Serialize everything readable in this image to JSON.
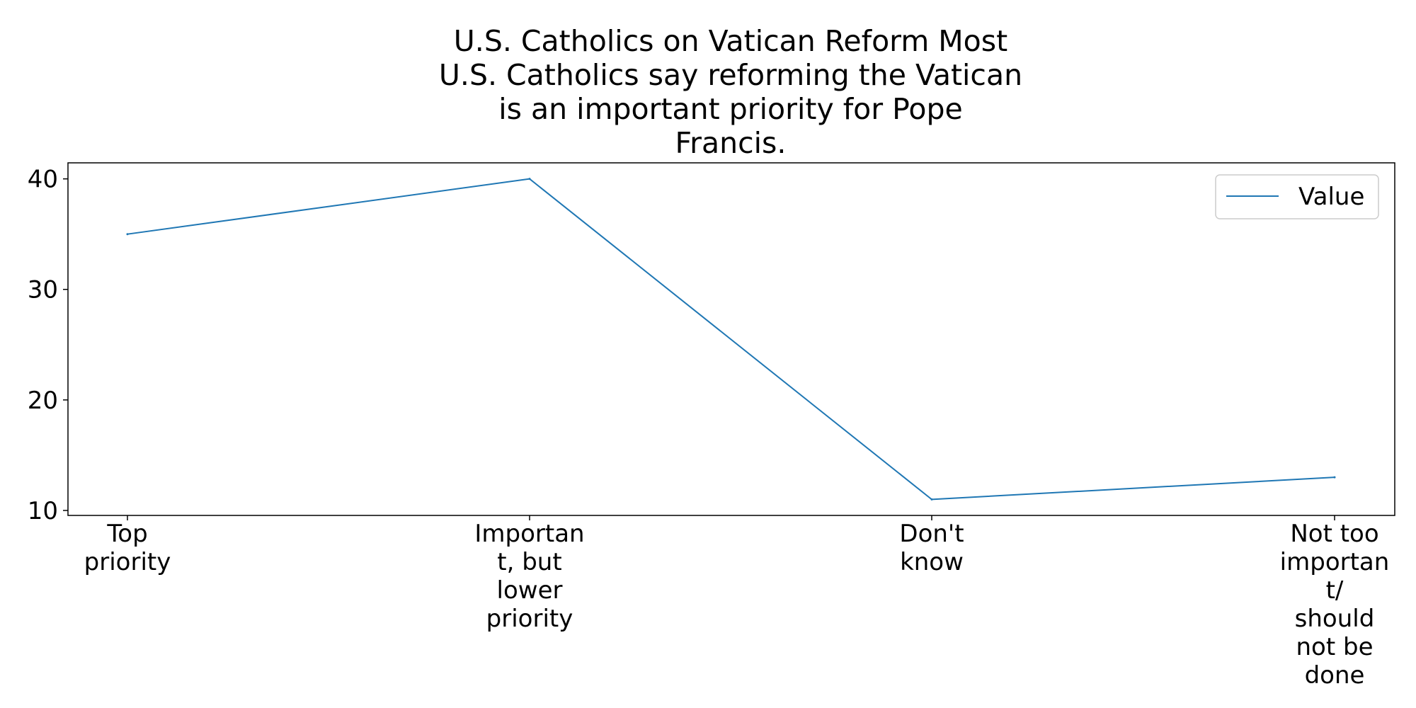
{
  "chart_data": {
    "type": "line",
    "title_lines": [
      "U.S. Catholics on Vatican Reform Most",
      "U.S. Catholics say reforming the Vatican",
      "is an important priority for Pope",
      "Francis."
    ],
    "categories": [
      "Top priority",
      "Important, but lower priority",
      "Don't know",
      "Not too important/ should not be done"
    ],
    "category_label_lines": [
      [
        "Top",
        "priority"
      ],
      [
        "Importan",
        "t, but",
        "lower",
        "priority"
      ],
      [
        "Don't",
        "know"
      ],
      [
        "Not too",
        "importan",
        "t/",
        "should",
        "not be",
        "done"
      ]
    ],
    "series": [
      {
        "name": "Value",
        "values": [
          35,
          40,
          11,
          13
        ],
        "color": "#1f77b4"
      }
    ],
    "ylim": [
      9.55,
      41.45
    ],
    "yticks": [
      10,
      20,
      30,
      40
    ],
    "xlabel": "",
    "ylabel": "",
    "grid": false,
    "legend_position": "top-right"
  }
}
